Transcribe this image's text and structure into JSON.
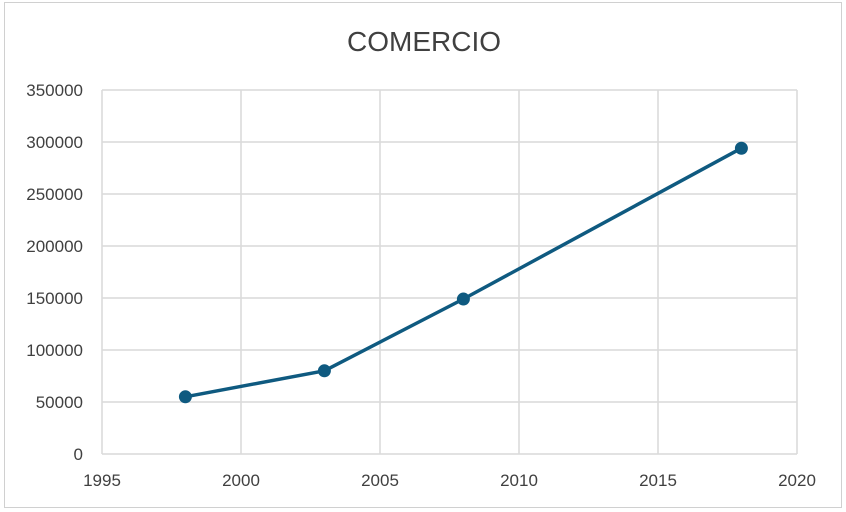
{
  "chart_data": {
    "type": "scatter",
    "title": "COMERCIO",
    "xlabel": "",
    "ylabel": "",
    "xlim": [
      1995,
      2020
    ],
    "ylim": [
      0,
      350000
    ],
    "x_ticks": [
      1995,
      2000,
      2005,
      2010,
      2015,
      2020
    ],
    "y_ticks": [
      0,
      50000,
      100000,
      150000,
      200000,
      250000,
      300000,
      350000
    ],
    "grid": true,
    "legend": "none",
    "series": [
      {
        "x": [
          1998,
          2003,
          2008,
          2018
        ],
        "y": [
          55000,
          80000,
          149000,
          294000
        ],
        "color": "#0f5a80",
        "lines": true,
        "markers": "circle"
      }
    ]
  }
}
